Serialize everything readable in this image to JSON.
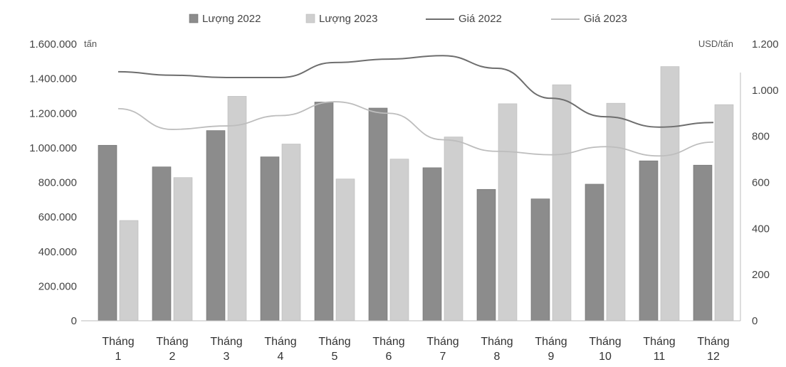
{
  "chart_data": {
    "type": "bar",
    "categories": [
      [
        "Tháng",
        "1"
      ],
      [
        "Tháng",
        "2"
      ],
      [
        "Tháng",
        "3"
      ],
      [
        "Tháng",
        "4"
      ],
      [
        "Tháng",
        "5"
      ],
      [
        "Tháng",
        "6"
      ],
      [
        "Tháng",
        "7"
      ],
      [
        "Tháng",
        "8"
      ],
      [
        "Tháng",
        "9"
      ],
      [
        "Tháng",
        "10"
      ],
      [
        "Tháng",
        "11"
      ],
      [
        "Tháng",
        "12"
      ]
    ],
    "left_axis": {
      "unit": "tấn",
      "ylim": [
        0,
        1600000
      ],
      "ticks": [
        0,
        200000,
        400000,
        600000,
        800000,
        1000000,
        1200000,
        1400000,
        1600000
      ],
      "tick_labels": [
        "0",
        "200.000",
        "400.000",
        "600.000",
        "800.000",
        "1.000.000",
        "1.200.000",
        "1.400.000",
        "1.600.000"
      ]
    },
    "right_axis": {
      "unit": "USD/tấn",
      "ylim": [
        0,
        1200
      ],
      "ticks": [
        0,
        200,
        400,
        600,
        800,
        1000,
        1200
      ],
      "tick_labels": [
        "0",
        "200",
        "400",
        "600",
        "800",
        "1.000",
        "1.200"
      ]
    },
    "series": [
      {
        "name": "Lượng 2022",
        "kind": "bar",
        "axis": "left",
        "color": "#8c8c8c",
        "values": [
          1015000,
          890000,
          1100000,
          948000,
          1265000,
          1230000,
          885000,
          760000,
          705000,
          790000,
          925000,
          900000
        ]
      },
      {
        "name": "Lượng 2023",
        "kind": "bar",
        "axis": "left",
        "color": "#cfcfcf",
        "values": [
          580000,
          828000,
          1298000,
          1022000,
          820000,
          935000,
          1063000,
          1255000,
          1365000,
          1258000,
          1470000,
          1250000
        ]
      },
      {
        "name": "Giá 2022",
        "kind": "line",
        "axis": "right",
        "color": "#6e6e6e",
        "values": [
          1080,
          1065,
          1055,
          1055,
          1120,
          1135,
          1150,
          1095,
          965,
          885,
          840,
          860
        ]
      },
      {
        "name": "Giá 2023",
        "kind": "line",
        "axis": "right",
        "color": "#bdbdbd",
        "values": [
          920,
          830,
          845,
          890,
          950,
          900,
          785,
          735,
          720,
          755,
          715,
          775
        ]
      }
    ],
    "legend_position": "top-center",
    "grid": false
  }
}
